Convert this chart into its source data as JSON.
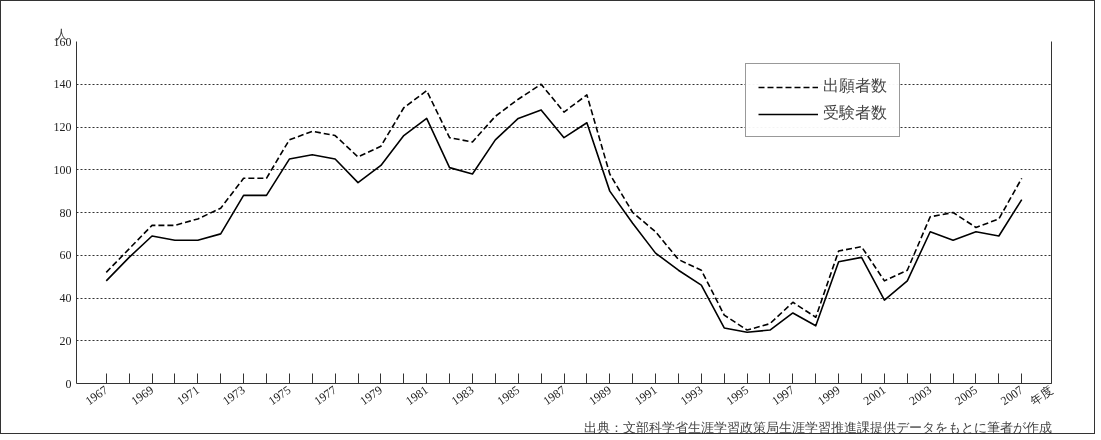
{
  "chart_data": {
    "type": "line",
    "xlabel": "年度",
    "ylabel": "人",
    "x": [
      1967,
      1968,
      1969,
      1970,
      1971,
      1972,
      1973,
      1974,
      1975,
      1976,
      1977,
      1978,
      1979,
      1980,
      1981,
      1982,
      1983,
      1984,
      1985,
      1986,
      1987,
      1988,
      1989,
      1990,
      1991,
      1992,
      1993,
      1994,
      1995,
      1996,
      1997,
      1998,
      1999,
      2000,
      2001,
      2002,
      2003,
      2004,
      2005,
      2006,
      2007
    ],
    "series": [
      {
        "name": "出願者数",
        "color": "#000000",
        "line_style": "dashed",
        "values": [
          52,
          63,
          74,
          74,
          77,
          82,
          96,
          96,
          114,
          118,
          116,
          106,
          111,
          129,
          137,
          115,
          113,
          125,
          133,
          140,
          127,
          135,
          98,
          80,
          71,
          58,
          53,
          32,
          25,
          28,
          38,
          31,
          62,
          64,
          48,
          53,
          78,
          80,
          73,
          77,
          96
        ]
      },
      {
        "name": "受験者数",
        "color": "#000000",
        "line_style": "solid",
        "values": [
          48,
          59,
          69,
          67,
          67,
          70,
          88,
          88,
          105,
          107,
          105,
          94,
          102,
          116,
          124,
          101,
          98,
          114,
          124,
          128,
          115,
          122,
          90,
          75,
          61,
          53,
          46,
          26,
          24,
          25,
          33,
          27,
          57,
          59,
          39,
          48,
          71,
          67,
          71,
          69,
          86
        ]
      }
    ],
    "xlim": [
      1965.7,
      2008.3
    ],
    "xticks": [
      1967,
      {
        "value": 1968,
        "label": null
      },
      1969,
      {
        "value": 1970,
        "label": null
      },
      1971,
      {
        "value": 1972,
        "label": null
      },
      1973,
      {
        "value": 1974,
        "label": null
      },
      1975,
      {
        "value": 1976,
        "label": null
      },
      1977,
      {
        "value": 1978,
        "label": null
      },
      1979,
      {
        "value": 1980,
        "label": null
      },
      1981,
      {
        "value": 1982,
        "label": null
      },
      1983,
      {
        "value": 1984,
        "label": null
      },
      1985,
      {
        "value": 1986,
        "label": null
      },
      1987,
      {
        "value": 1988,
        "label": null
      },
      1989,
      {
        "value": 1990,
        "label": null
      },
      1991,
      {
        "value": 1992,
        "label": null
      },
      1993,
      {
        "value": 1994,
        "label": null
      },
      1995,
      {
        "value": 1996,
        "label": null
      },
      1997,
      {
        "value": 1998,
        "label": null
      },
      1999,
      {
        "value": 2000,
        "label": null
      },
      2001,
      {
        "value": 2002,
        "label": null
      },
      2003,
      {
        "value": 2004,
        "label": null
      },
      2005,
      {
        "value": 2006,
        "label": null
      },
      2007
    ],
    "ylim": [
      0,
      160
    ],
    "yticks": [
      0,
      20,
      40,
      60,
      80,
      100,
      120,
      140,
      160
    ],
    "grid": "y",
    "legend": "top right",
    "marker": "none",
    "annotations": [
      "出典：文部科学省生涯学習政策局生涯学習推進課提供データをもとに筆者が作成"
    ]
  }
}
